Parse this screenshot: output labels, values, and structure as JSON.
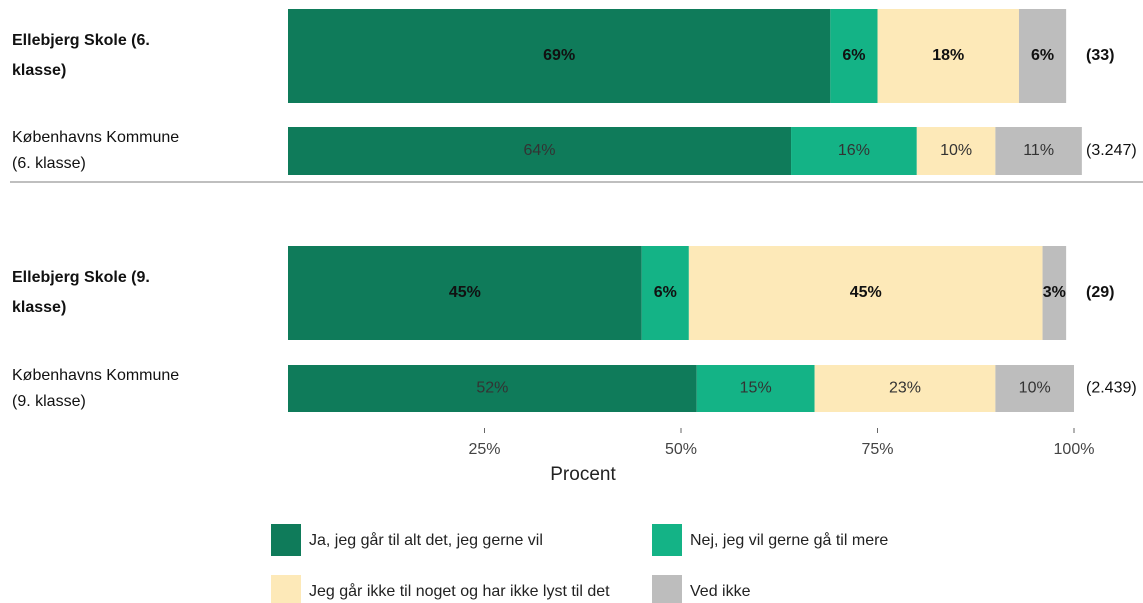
{
  "chart_data": {
    "type": "stacked_barh",
    "categories": [
      "Ellebjerg Skole (6. klasse)",
      "Københavns Kommune (6. klasse)",
      "Ellebjerg Skole (9. klasse)",
      "Københavns Kommune (9. klasse)"
    ],
    "bold": [
      true,
      false,
      true,
      false
    ],
    "n_labels": [
      "(33)",
      "(3.247)",
      "(29)",
      "(2.439)"
    ],
    "series": [
      {
        "name": "Ja, jeg går til alt det, jeg gerne vil",
        "color": "#0f7b5a",
        "values": [
          69,
          64,
          45,
          52
        ],
        "value_labels": [
          "69%",
          "64%",
          "45%",
          "52%"
        ]
      },
      {
        "name": "Nej, jeg vil gerne gå til mere",
        "color": "#14b386",
        "values": [
          6,
          16,
          6,
          15
        ],
        "value_labels": [
          "6%",
          "16%",
          "6%",
          "15%"
        ]
      },
      {
        "name": "Jeg går ikke til noget og har ikke lyst til det",
        "color": "#fde9b8",
        "values": [
          18,
          10,
          45,
          23
        ],
        "value_labels": [
          "18%",
          "10%",
          "45%",
          "23%"
        ]
      },
      {
        "name": "Ved ikke",
        "color": "#bdbdbd",
        "values": [
          6,
          11,
          3,
          10
        ],
        "value_labels": [
          "6%",
          "11%",
          "3%",
          "10%"
        ]
      }
    ],
    "xlim": [
      0,
      100
    ],
    "xticks": [
      {
        "value": 25,
        "label": "25%"
      },
      {
        "value": 50,
        "label": "50%"
      },
      {
        "value": 75,
        "label": "75%"
      },
      {
        "value": 100,
        "label": "100%"
      }
    ],
    "xlabel": "Procent"
  }
}
